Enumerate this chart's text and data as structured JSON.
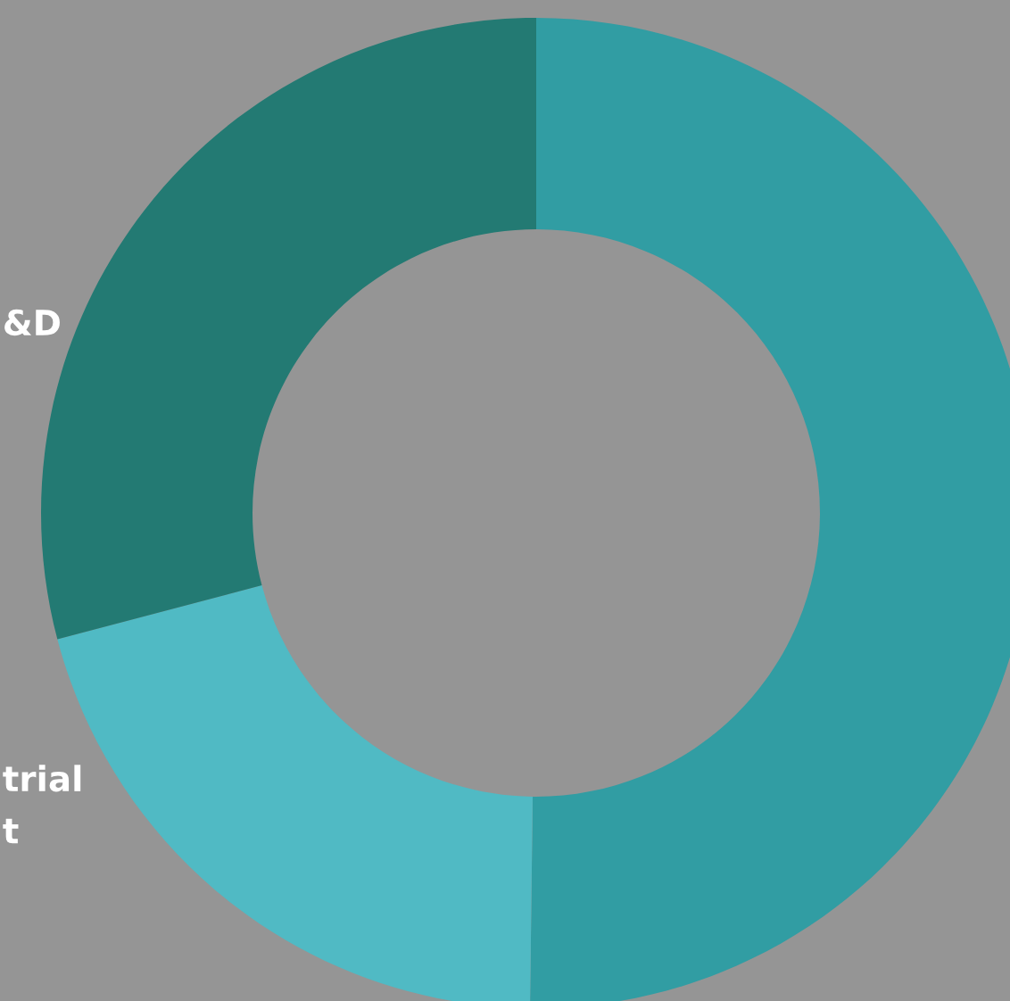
{
  "chart_data": {
    "type": "donut",
    "categories": [
      null,
      "trial\nt",
      "&D"
    ],
    "values": [
      50.2,
      20.7,
      29.1
    ],
    "colors": [
      "#319da3",
      "#50bac4",
      "#237a73"
    ]
  }
}
